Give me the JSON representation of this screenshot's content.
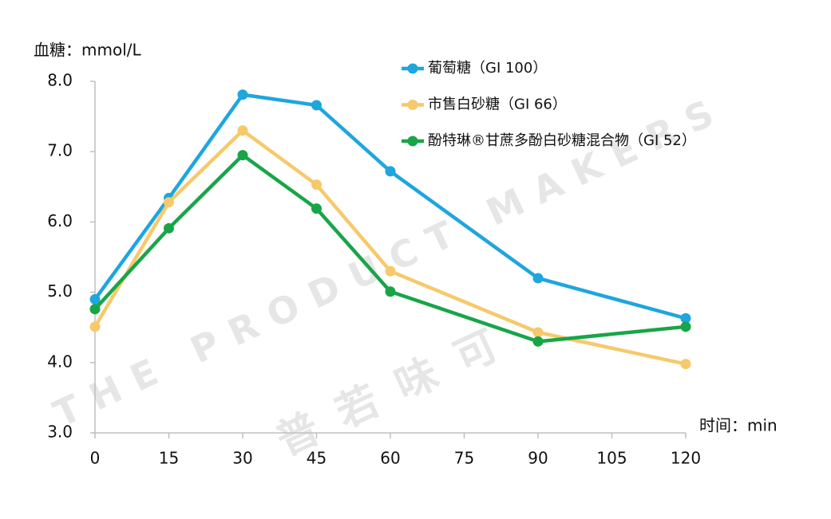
{
  "chart_data": {
    "type": "line",
    "y_label": "血糖：mmol/L",
    "x_label": "时间：min",
    "watermark": [
      "THE PRODUCT MAKERS",
      "普若味可"
    ],
    "x": [
      0,
      15,
      30,
      45,
      60,
      90,
      120
    ],
    "xlim": [
      0,
      120
    ],
    "xticks": [
      0,
      15,
      30,
      45,
      60,
      75,
      90,
      105,
      120
    ],
    "ylim": [
      3,
      8
    ],
    "yticks": [
      {
        "value": 3,
        "label": "3.0"
      },
      {
        "value": 4,
        "label": "4.0"
      },
      {
        "value": 5,
        "label": "5.0"
      },
      {
        "value": 6,
        "label": "6.0"
      },
      {
        "value": 7,
        "label": "7.0"
      },
      {
        "value": 8,
        "label": "8.0"
      }
    ],
    "grid": false,
    "legend": "upper right",
    "series": [
      {
        "name": "葡萄糖（GI 100）",
        "color": "#1ea6de",
        "values": [
          4.9,
          6.34,
          7.81,
          7.66,
          6.72,
          5.2,
          4.63
        ]
      },
      {
        "name": "市售白砂糖（GI 66）",
        "color": "#f6c96a",
        "values": [
          4.51,
          6.28,
          7.3,
          6.53,
          5.3,
          4.43,
          3.98
        ]
      },
      {
        "name": "酚特琳®甘蔗多酚白砂糖混合物（GI 52）",
        "color": "#18a548",
        "values": [
          4.76,
          5.91,
          6.95,
          6.19,
          5.01,
          4.3,
          4.51
        ]
      }
    ]
  }
}
